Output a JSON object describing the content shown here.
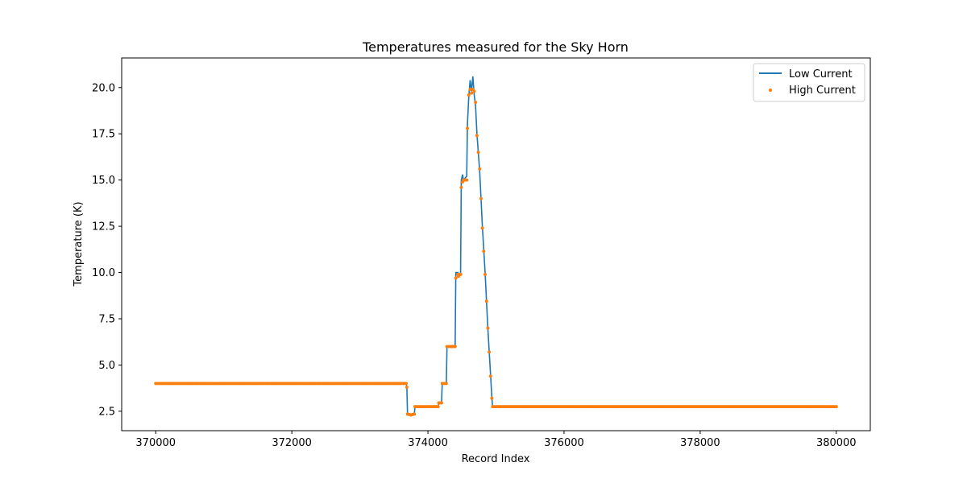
{
  "chart_data": {
    "type": "line",
    "title": "Temperatures measured for the Sky Horn",
    "xlabel": "Record Index",
    "ylabel": "Temperature (K)",
    "xlim": [
      369500,
      380500
    ],
    "ylim": [
      1.45,
      21.6
    ],
    "xticks": [
      370000,
      372000,
      374000,
      376000,
      378000,
      380000
    ],
    "yticks": [
      2.5,
      5.0,
      7.5,
      10.0,
      12.5,
      15.0,
      17.5,
      20.0
    ],
    "xtick_labels": [
      "370000",
      "372000",
      "374000",
      "376000",
      "378000",
      "380000"
    ],
    "ytick_labels": [
      "2.5",
      "5.0",
      "7.5",
      "10.0",
      "12.5",
      "15.0",
      "17.5",
      "20.0"
    ],
    "grid": false,
    "legend_position": "top-right",
    "series": [
      {
        "name": "Low Current",
        "style": "line",
        "color": "#1f77b4",
        "x": [
          370000,
          373680,
          373690,
          373700,
          373750,
          373800,
          373810,
          374150,
          374160,
          374200,
          374210,
          374270,
          374280,
          374340,
          374350,
          374400,
          374410,
          374440,
          374450,
          374480,
          374490,
          374510,
          374520,
          374570,
          374580,
          374600,
          374620,
          374640,
          374660,
          374680,
          374700,
          374720,
          374760,
          374800,
          374840,
          374880,
          374920,
          374940,
          374950,
          380000
        ],
        "y": [
          4.0,
          4.0,
          3.85,
          2.35,
          2.3,
          2.35,
          2.75,
          2.75,
          3.0,
          3.0,
          4.0,
          4.0,
          6.0,
          6.0,
          6.05,
          6.05,
          10.0,
          10.0,
          9.8,
          10.0,
          15.0,
          15.3,
          15.0,
          15.2,
          18.0,
          19.5,
          20.4,
          19.8,
          20.6,
          19.6,
          19.0,
          17.5,
          15.5,
          12.5,
          10.0,
          7.0,
          4.5,
          3.2,
          2.75,
          2.75
        ]
      },
      {
        "name": "High Current",
        "style": "scatter",
        "color": "#ff7f0e",
        "x": [
          370000,
          373680,
          373690,
          373700,
          373750,
          373800,
          373810,
          374150,
          374160,
          374200,
          374210,
          374270,
          374280,
          374340,
          374350,
          374400,
          374410,
          374440,
          374450,
          374480,
          374490,
          374510,
          374520,
          374570,
          374580,
          374600,
          374620,
          374640,
          374660,
          374680,
          374700,
          374720,
          374760,
          374800,
          374840,
          374880,
          374920,
          374940,
          374950,
          380000
        ],
        "y": [
          4.0,
          4.0,
          3.8,
          2.35,
          2.3,
          2.35,
          2.75,
          2.75,
          2.95,
          2.95,
          4.0,
          4.0,
          6.0,
          6.0,
          6.0,
          6.0,
          9.7,
          9.9,
          9.8,
          9.9,
          14.6,
          14.9,
          15.0,
          15.0,
          17.8,
          19.6,
          19.9,
          19.7,
          19.9,
          19.8,
          19.2,
          17.4,
          15.6,
          12.4,
          9.9,
          7.0,
          4.4,
          3.2,
          2.75,
          2.75
        ]
      }
    ]
  }
}
